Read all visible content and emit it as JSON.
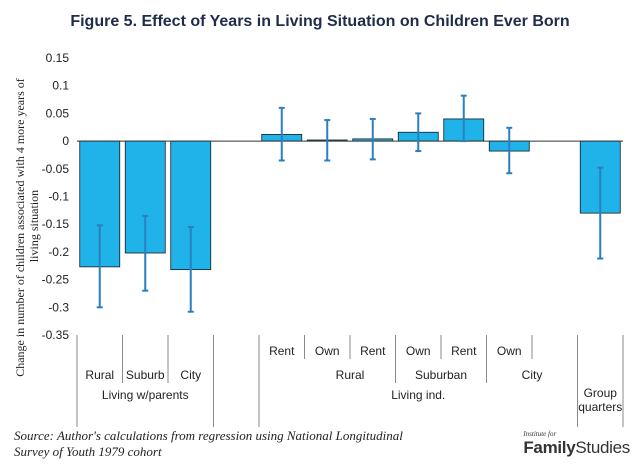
{
  "chart_data": {
    "type": "bar",
    "title": "Figure 5. Effect of Years in Living Situation on Children Ever Born",
    "ylabel": "Change in number of children associated with 4 more years of living situation",
    "ylim": [
      -0.35,
      0.15
    ],
    "yticks": [
      "0.15",
      "0.1",
      "0.05",
      "0",
      "-0.05",
      "-0.1",
      "-0.15",
      "-0.2",
      "-0.25",
      "-0.3",
      "-0.35"
    ],
    "grid": false,
    "bar_color": "#1fb3ea",
    "error_color": "#2a7fc0",
    "categories": [
      "Rural",
      "Suburb",
      "City",
      "",
      "Rent",
      "Own",
      "Rent",
      "Own",
      "Rent",
      "Own",
      "",
      "Group quarters"
    ],
    "values": [
      -0.227,
      -0.202,
      -0.232,
      null,
      0.012,
      0.002,
      0.004,
      0.016,
      0.04,
      -0.018,
      null,
      -0.13
    ],
    "error_low": [
      -0.3,
      -0.27,
      -0.308,
      null,
      -0.035,
      -0.035,
      -0.033,
      -0.018,
      0.0,
      -0.058,
      null,
      -0.212
    ],
    "error_high": [
      -0.152,
      -0.135,
      -0.155,
      null,
      0.06,
      0.038,
      0.04,
      0.05,
      0.082,
      0.024,
      null,
      -0.048
    ],
    "groups_mid": [
      {
        "label": "",
        "from": 4,
        "to": 5
      },
      {
        "label": "Rural",
        "from": 5,
        "to": 7
      },
      {
        "label": "Suburban",
        "from": 7,
        "to": 9
      },
      {
        "label": "City",
        "from": 9,
        "to": 11
      }
    ],
    "groups_top": [
      {
        "label": "Living w/parents",
        "from": 0,
        "to": 3
      },
      {
        "label": "",
        "from": 3,
        "to": 4
      },
      {
        "label": "Living ind.",
        "from": 4,
        "to": 11
      },
      {
        "label": "Group quarters",
        "from": 11,
        "to": 12
      }
    ]
  },
  "source": "Source: Author's calculations from regression using National Longitudinal Survey of Youth 1979 cohort",
  "logo": {
    "small": "Institute for",
    "bold": "Family",
    "light": "Studies"
  }
}
